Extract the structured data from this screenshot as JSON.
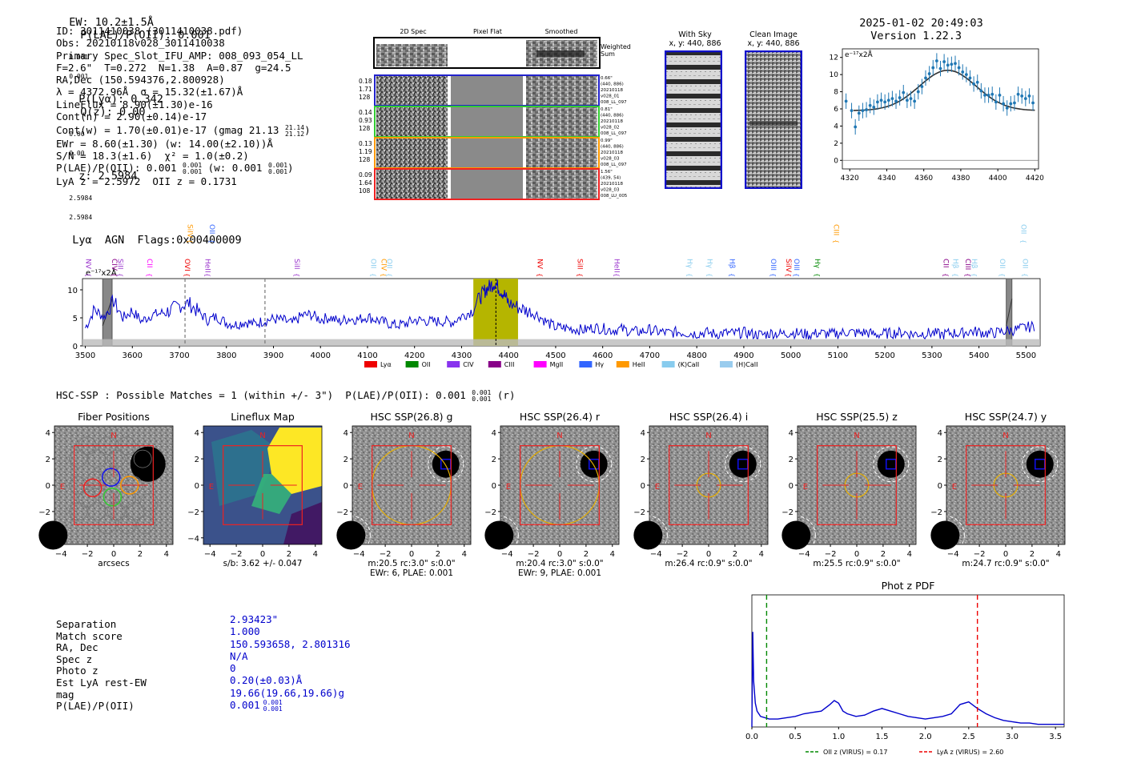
{
  "header": {
    "ew": "EW: 10.2±1.5Å",
    "plae": "P(LAE)/P(OII): 0.001",
    "plae_sup": "0.001",
    "plae_sub": "0.001",
    "plya": "P(Lyα): 0.342",
    "qz": "Q(z): 0.00",
    "qz_sup": "0.00",
    "qz_sub": "0.00",
    "z": "z: 2.5984",
    "z_sup": "2.5984",
    "z_sub": "2.5984",
    "tail": "Lyα  AGN  Flags:0x00400009",
    "datetime": "2025-01-02 20:49:03",
    "version": "Version 1.22.3"
  },
  "info": {
    "id": "ID: 3011410038 (3011410038.pdf)",
    "obs": "Obs: 20210118v028_3011410038",
    "primary": "Primary Spec_Slot_IFU_AMP: 008_093_054_LL",
    "params": "F=2.6\"  T=0.272  N=1.38  A=0.87  g=24.5",
    "radec": "RA,Dec (150.594376,2.800928)",
    "lambda": "λ = 4372.96Å  σ = 15.32(±1.67)Å",
    "lineflux": "LineFlux = 8.90(±1.30)e-16",
    "contn": "Cont(n) = 2.90(±0.14)e-17",
    "contw": "Cont(w) = 1.70(±0.01)e-17 (gmag 21.13",
    "contw_sup": "21.14",
    "contw_sub": "21.12",
    "ewr": "EWr = 8.60(±1.30) (w: 14.00(±2.10))Å",
    "sn": "S/N = 18.3(±1.6)  χ² = 1.0(±0.2)",
    "plae_a": "P(LAE)/P(OII): 0.001",
    "plae_a_sup": "0.001",
    "plae_a_sub": "0.001",
    "plae_w": "(w: 0.001",
    "plae_w_sup": "0.001",
    "plae_w_sub": "0.001",
    "lyaz": "LyA z = 2.5972  OII z = 0.1731"
  },
  "cutouts": {
    "col_titles": [
      "2D Spec",
      "Pixel Flat",
      "Smoothed"
    ],
    "weighted": "Weighted\nSum",
    "rows": [
      {
        "left": [
          "0.18",
          "1.71",
          "128"
        ],
        "right": [
          "0.66\"",
          "(440, 886)",
          "20210118",
          "v028_01",
          "008_LL_097"
        ],
        "color": "#2222cc"
      },
      {
        "left": [
          "0.14",
          "0.93",
          "128"
        ],
        "right": [
          "0.81\"",
          "(440, 886)",
          "20210118",
          "v028_02",
          "008_LL_097"
        ],
        "color": "#33cc33"
      },
      {
        "left": [
          "0.13",
          "1.19",
          "128"
        ],
        "right": [
          "0.99\"",
          "(440, 886)",
          "20210118",
          "v028_03",
          "008_LL_097"
        ],
        "color": "#ff9900"
      },
      {
        "left": [
          "0.09",
          "1.64",
          "108"
        ],
        "right": [
          "1.56\"",
          "(439, 54)",
          "20210118",
          "v028_03",
          "008_LU_005"
        ],
        "color": "#ee2222"
      }
    ],
    "with_sky": "With Sky",
    "with_sky_xy": "x, y: 440, 886",
    "clean": "Clean Image",
    "clean_xy": "x, y: 440, 886"
  },
  "lines_legend": [
    "Lyα",
    "OII",
    "CIV",
    "CIII",
    "MgII",
    "Hγ",
    "HeII",
    "(K)CaII",
    "(H)CaII"
  ],
  "legend_colors": [
    "#ee0000",
    "#008800",
    "#8833ee",
    "#880088",
    "#ff00ff",
    "#3366ff",
    "#ff9900",
    "#88ccee",
    "#99ccee"
  ],
  "line_labels_low": [
    {
      "t": "NV",
      "w": 3502,
      "c": "#9933cc"
    },
    {
      "t": "CIV",
      "w": 3557,
      "c": "#880088"
    },
    {
      "t": "SiII",
      "w": 3570,
      "c": "#9933cc"
    },
    {
      "t": "CII",
      "w": 3632,
      "c": "#ff00ff"
    },
    {
      "t": "OVI",
      "w": 3712,
      "c": "#ee0000"
    },
    {
      "t": "HeII",
      "w": 3755,
      "c": "#9933cc"
    },
    {
      "t": "SiII",
      "w": 3945,
      "c": "#9933cc"
    },
    {
      "t": "OII",
      "w": 4108,
      "c": "#88ccee"
    },
    {
      "t": "CIV",
      "w": 4130,
      "c": "#ff9900"
    },
    {
      "t": "OII",
      "w": 4142,
      "c": "#88ccee"
    },
    {
      "t": "NV",
      "w": 4462,
      "c": "#ee0000"
    },
    {
      "t": "SiII",
      "w": 4547,
      "c": "#ee0000"
    },
    {
      "t": "HeII",
      "w": 4625,
      "c": "#9933cc"
    },
    {
      "t": "Hγ",
      "w": 4780,
      "c": "#88ccee"
    },
    {
      "t": "Hγ",
      "w": 4823,
      "c": "#88ccee"
    },
    {
      "t": "Hβ",
      "w": 4870,
      "c": "#3366ff"
    },
    {
      "t": "OIII",
      "w": 4958,
      "c": "#3366ff"
    },
    {
      "t": "SiIV",
      "w": 4990,
      "c": "#ee0000"
    },
    {
      "t": "OIII",
      "w": 5007,
      "c": "#3366ff"
    },
    {
      "t": "Hγ",
      "w": 5052,
      "c": "#008800"
    },
    {
      "t": "CII",
      "w": 5325,
      "c": "#880088"
    },
    {
      "t": "Hβ",
      "w": 5345,
      "c": "#88ccee"
    },
    {
      "t": "CIII",
      "w": 5372,
      "c": "#880088"
    },
    {
      "t": "Hβ",
      "w": 5385,
      "c": "#88ccee"
    },
    {
      "t": "OII",
      "w": 5445,
      "c": "#88ccee"
    },
    {
      "t": "OII",
      "w": 5493,
      "c": "#88ccee"
    }
  ],
  "line_labels_high": [
    {
      "t": "SiIV",
      "w": 3718,
      "c": "#ff9900"
    },
    {
      "t": "OII",
      "w": 3765,
      "c": "#3366ff"
    },
    {
      "t": "CIII",
      "w": 5092,
      "c": "#ff9900"
    },
    {
      "t": "OII",
      "w": 5490,
      "c": "#88ccee"
    }
  ],
  "hsc_title": "HSC-SSP : Possible Matches = 1 (within +/- 3\")  P(LAE)/P(OII): 0.001",
  "hsc_title_sup": "0.001",
  "hsc_title_sub": "0.001",
  "hsc_title_tail": "(r)",
  "stamps": [
    {
      "title": "Fiber Positions",
      "caption1": "arcsecs",
      "caption2": ""
    },
    {
      "title": "Lineflux Map",
      "caption1": "s/b: 3.62 +/- 0.047",
      "caption2": ""
    },
    {
      "title": "HSC SSP(26.8) g",
      "caption1": "m:20.5 rc:3.0\"  s:0.0\"",
      "caption2": "EWr: 6, PLAE: 0.001"
    },
    {
      "title": "HSC SSP(26.4) r",
      "caption1": "m:20.4 rc:3.0\"  s:0.0\"",
      "caption2": "EWr: 9, PLAE: 0.001"
    },
    {
      "title": "HSC SSP(26.4) i",
      "caption1": "m:26.4 rc:0.9\"  s:0.0\"",
      "caption2": ""
    },
    {
      "title": "HSC SSP(25.5) z",
      "caption1": "m:25.5 rc:0.9\"  s:0.0\"",
      "caption2": ""
    },
    {
      "title": "HSC SSP(24.7) y",
      "caption1": "m:24.7 rc:0.9\"  s:0.0\"",
      "caption2": ""
    }
  ],
  "stamp_marks": {
    "north": "N",
    "east": "E"
  },
  "match": {
    "labels": [
      "Separation",
      "Match score",
      "RA, Dec",
      "Spec z",
      "Photo z",
      "Est LyA rest-EW",
      "mag",
      "P(LAE)/P(OII)"
    ],
    "values": [
      "2.93423\"",
      "1.000",
      "150.593658, 2.801316",
      "N/A",
      "0",
      "0.20(±0.03)Å",
      "19.66(19.66,19.66)g",
      "0.001"
    ],
    "plae_sup": "0.001",
    "plae_sub": "0.001"
  },
  "chart_data": [
    {
      "type": "scatter",
      "title": "",
      "unit_label": "e⁻¹⁷x2Å",
      "xlim": [
        4316,
        4422
      ],
      "ylim": [
        -1,
        13
      ],
      "xticks": [
        4320,
        4340,
        4360,
        4380,
        4400,
        4420
      ],
      "yticks": [
        0,
        2,
        4,
        6,
        8,
        10,
        12
      ],
      "x": [
        4318,
        4321,
        4323,
        4325,
        4327,
        4329,
        4331,
        4333,
        4335,
        4337,
        4339,
        4341,
        4343,
        4345,
        4347,
        4349,
        4351,
        4353,
        4355,
        4357,
        4359,
        4361,
        4363,
        4365,
        4367,
        4369,
        4371,
        4373,
        4375,
        4377,
        4379,
        4381,
        4383,
        4385,
        4387,
        4389,
        4391,
        4393,
        4395,
        4397,
        4399,
        4401,
        4403,
        4405,
        4407,
        4409,
        4411,
        4413,
        4415,
        4417,
        4419
      ],
      "values": [
        6.9,
        5.8,
        3.9,
        5.5,
        5.8,
        5.9,
        6.4,
        6.2,
        6.8,
        7.0,
        6.8,
        7.0,
        7.2,
        6.9,
        7.3,
        7.9,
        7.0,
        7.2,
        6.9,
        8.0,
        8.6,
        9.6,
        10.1,
        10.8,
        11.6,
        10.7,
        11.5,
        11.1,
        11.2,
        11.3,
        10.8,
        10.3,
        10.0,
        9.6,
        8.9,
        9.1,
        8.1,
        7.6,
        7.6,
        7.7,
        6.8,
        7.6,
        6.6,
        6.1,
        6.6,
        6.7,
        7.7,
        7.5,
        7.2,
        7.5,
        6.7
      ],
      "errors": 0.9,
      "fit": {
        "type": "gaussian",
        "center": 4372.96,
        "sigma": 15.32,
        "amplitude": 4.7,
        "baseline": 5.8
      }
    },
    {
      "type": "line",
      "title": "",
      "unit_label": "e⁻¹⁷x2Å",
      "xlim": [
        3494,
        5530
      ],
      "ylim": [
        0,
        12
      ],
      "xticks": [
        3500,
        3600,
        3700,
        3800,
        3900,
        4000,
        4100,
        4200,
        4300,
        4400,
        4500,
        4600,
        4700,
        4800,
        4900,
        5000,
        5100,
        5200,
        5300,
        5400,
        5500
      ],
      "yticks": [
        0,
        5,
        10
      ],
      "series": [
        {
          "name": "flux",
          "color": "#0000cc",
          "x": [
            3500,
            3520,
            3540,
            3560,
            3580,
            3600,
            3620,
            3640,
            3660,
            3680,
            3700,
            3720,
            3740,
            3760,
            3780,
            3800,
            3820,
            3840,
            3860,
            3880,
            3900,
            3920,
            3940,
            3960,
            3980,
            4000,
            4020,
            4040,
            4060,
            4080,
            4100,
            4120,
            4140,
            4160,
            4180,
            4200,
            4220,
            4240,
            4260,
            4280,
            4300,
            4320,
            4340,
            4350,
            4360,
            4370,
            4380,
            4390,
            4400,
            4420,
            4440,
            4460,
            4480,
            4500,
            4520,
            4540,
            4560,
            4580,
            4600,
            4620,
            4640,
            4660,
            4680,
            4700,
            4720,
            4740,
            4760,
            4780,
            4800,
            4820,
            4840,
            4860,
            4880,
            4900,
            4920,
            4940,
            4960,
            4980,
            5000,
            5020,
            5040,
            5060,
            5080,
            5100,
            5120,
            5140,
            5160,
            5180,
            5200,
            5220,
            5240,
            5260,
            5280,
            5300,
            5320,
            5340,
            5360,
            5380,
            5400,
            5420,
            5440,
            5460,
            5480,
            5500,
            5520
          ],
          "values": [
            3.2,
            6.5,
            5.1,
            8.0,
            5.0,
            6.2,
            4.4,
            5.5,
            5.8,
            6.3,
            7.2,
            7.6,
            6.1,
            4.6,
            5.2,
            4.1,
            3.8,
            4.3,
            3.9,
            4.5,
            4.8,
            4.6,
            4.0,
            5.4,
            5.6,
            4.7,
            5.1,
            4.3,
            4.9,
            4.7,
            5.2,
            4.6,
            4.1,
            3.7,
            3.9,
            4.6,
            4.5,
            4.3,
            4.4,
            4.2,
            5.3,
            6.1,
            8.7,
            9.9,
            10.6,
            11.3,
            10.2,
            9.3,
            7.6,
            6.9,
            6.2,
            5.6,
            4.3,
            3.3,
            3.2,
            3.0,
            2.8,
            3.3,
            3.1,
            2.8,
            3.0,
            2.6,
            2.5,
            2.9,
            2.5,
            2.3,
            2.5,
            2.3,
            2.2,
            2.4,
            2.1,
            2.3,
            2.2,
            2.4,
            2.1,
            2.0,
            2.3,
            2.1,
            2.4,
            2.2,
            2.0,
            2.3,
            2.1,
            2.2,
            2.5,
            2.3,
            2.4,
            2.0,
            2.2,
            2.3,
            2.4,
            2.1,
            2.2,
            2.3,
            2.0,
            2.3,
            2.2,
            2.6,
            2.5,
            2.2,
            2.4,
            2.7,
            2.9,
            3.3,
            3.5
          ]
        },
        {
          "name": "error",
          "color": "#bbbbbb",
          "values_constant": 1.2
        }
      ],
      "highlight_band": [
        4325,
        4420
      ],
      "line_center": 4372.96,
      "dashed_markers": [
        3712,
        3882
      ],
      "masked_regions": [
        [
          3537,
          3557
        ],
        [
          5458,
          5470
        ]
      ]
    },
    {
      "type": "line",
      "title": "Phot z PDF",
      "xlim": [
        0.0,
        3.6
      ],
      "ylim": [
        0,
        1
      ],
      "xticks": [
        0.0,
        0.5,
        1.0,
        1.5,
        2.0,
        2.5,
        3.0,
        3.5
      ],
      "series": [
        {
          "name": "pdf",
          "color": "#0000cc",
          "x": [
            0.0,
            0.01,
            0.02,
            0.04,
            0.06,
            0.1,
            0.2,
            0.3,
            0.4,
            0.5,
            0.6,
            0.7,
            0.8,
            0.9,
            0.95,
            1.0,
            1.05,
            1.1,
            1.2,
            1.3,
            1.4,
            1.5,
            1.6,
            1.7,
            1.8,
            1.9,
            2.0,
            2.1,
            2.2,
            2.3,
            2.4,
            2.5,
            2.6,
            2.7,
            2.8,
            2.9,
            3.0,
            3.1,
            3.2,
            3.3,
            3.4,
            3.5,
            3.6
          ],
          "values": [
            0.0,
            0.72,
            0.35,
            0.18,
            0.12,
            0.08,
            0.06,
            0.06,
            0.07,
            0.08,
            0.1,
            0.11,
            0.12,
            0.17,
            0.2,
            0.18,
            0.12,
            0.1,
            0.08,
            0.09,
            0.12,
            0.14,
            0.12,
            0.1,
            0.08,
            0.07,
            0.06,
            0.07,
            0.08,
            0.1,
            0.17,
            0.19,
            0.14,
            0.1,
            0.07,
            0.05,
            0.04,
            0.03,
            0.03,
            0.02,
            0.02,
            0.02,
            0.02
          ]
        }
      ],
      "vlines": [
        {
          "x": 0.17,
          "color": "#008800",
          "label": "OII z (VIRUS) = 0.17"
        },
        {
          "x": 2.6,
          "color": "#ee0000",
          "label": "LyA z (VIRUS) = 2.60"
        }
      ]
    }
  ]
}
